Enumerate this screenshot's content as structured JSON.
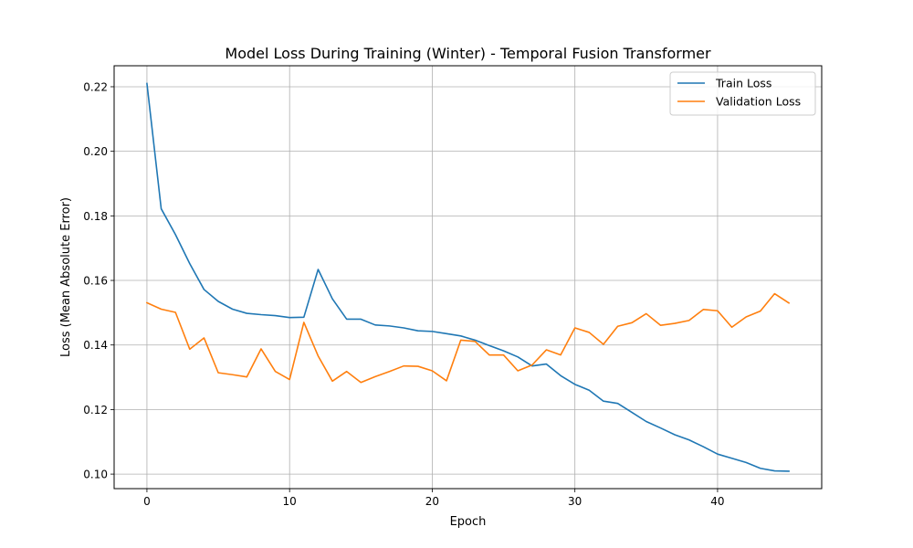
{
  "chart_data": {
    "type": "line",
    "title": "Model Loss During Training (Winter) - Temporal Fusion Transformer",
    "xlabel": "Epoch",
    "ylabel": "Loss (Mean Absolute Error)",
    "xlim": [
      -2.3,
      47.3
    ],
    "ylim": [
      0.0955,
      0.2265
    ],
    "xticks": [
      0,
      10,
      20,
      30,
      40
    ],
    "yticks": [
      0.1,
      0.12,
      0.14,
      0.16,
      0.18,
      0.2,
      0.22
    ],
    "grid": true,
    "legend_position": "top-right",
    "series": [
      {
        "name": "Train Loss",
        "color": "#1f77b4",
        "x": [
          0,
          1,
          2,
          3,
          4,
          5,
          6,
          7,
          8,
          9,
          10,
          11,
          12,
          13,
          14,
          15,
          16,
          17,
          18,
          19,
          20,
          21,
          22,
          23,
          24,
          25,
          26,
          27,
          28,
          29,
          30,
          31,
          32,
          33,
          34,
          35,
          36,
          37,
          38,
          39,
          40,
          41,
          42,
          43,
          44,
          45
        ],
        "values": [
          0.221,
          0.1822,
          0.1742,
          0.1652,
          0.1572,
          0.1535,
          0.1511,
          0.1498,
          0.1494,
          0.1491,
          0.1485,
          0.1486,
          0.1634,
          0.1543,
          0.148,
          0.148,
          0.1462,
          0.1459,
          0.1453,
          0.1444,
          0.1442,
          0.1435,
          0.1428,
          0.1415,
          0.1398,
          0.1382,
          0.1363,
          0.1335,
          0.1341,
          0.1305,
          0.1278,
          0.126,
          0.1226,
          0.1219,
          0.1191,
          0.1163,
          0.1143,
          0.1122,
          0.1106,
          0.1085,
          0.1062,
          0.1049,
          0.1036,
          0.1018,
          0.101,
          0.1009
        ]
      },
      {
        "name": "Validation Loss",
        "color": "#ff7f0e",
        "x": [
          0,
          1,
          2,
          3,
          4,
          5,
          6,
          7,
          8,
          9,
          10,
          11,
          12,
          13,
          14,
          15,
          16,
          17,
          18,
          19,
          20,
          21,
          22,
          23,
          24,
          25,
          26,
          27,
          28,
          29,
          30,
          31,
          32,
          33,
          34,
          35,
          36,
          37,
          38,
          39,
          40,
          41,
          42,
          43,
          44,
          45
        ],
        "values": [
          0.1531,
          0.1511,
          0.1501,
          0.1387,
          0.1422,
          0.1314,
          0.1308,
          0.1301,
          0.1388,
          0.1318,
          0.1293,
          0.147,
          0.1366,
          0.1288,
          0.1318,
          0.1284,
          0.1302,
          0.1318,
          0.1335,
          0.1334,
          0.132,
          0.1289,
          0.1415,
          0.1411,
          0.1369,
          0.1369,
          0.132,
          0.1338,
          0.1385,
          0.1369,
          0.1453,
          0.1439,
          0.1402,
          0.1458,
          0.1469,
          0.1497,
          0.1461,
          0.1467,
          0.1476,
          0.151,
          0.1506,
          0.1455,
          0.1487,
          0.1505,
          0.1559,
          0.153
        ]
      }
    ]
  }
}
